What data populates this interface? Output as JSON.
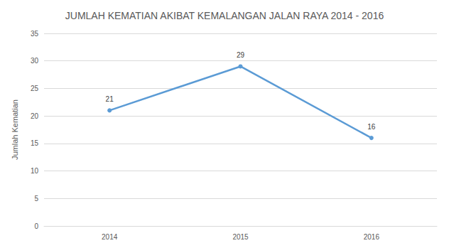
{
  "chart_data": {
    "type": "line",
    "title": "JUMLAH KEMATIAN AKIBAT KEMALANGAN JALAN RAYA 2014 - 2016",
    "y_label": "Jumlah Kematian",
    "categories": [
      "2014",
      "2015",
      "2016"
    ],
    "values": [
      21,
      29,
      16
    ],
    "color": "#5b9bd5",
    "ylim": [
      0,
      35
    ],
    "yticks": [
      0,
      5,
      10,
      15,
      20,
      25,
      30,
      35
    ],
    "grid": true,
    "data_labels": true,
    "marker": "circle",
    "line_style": "solid"
  }
}
